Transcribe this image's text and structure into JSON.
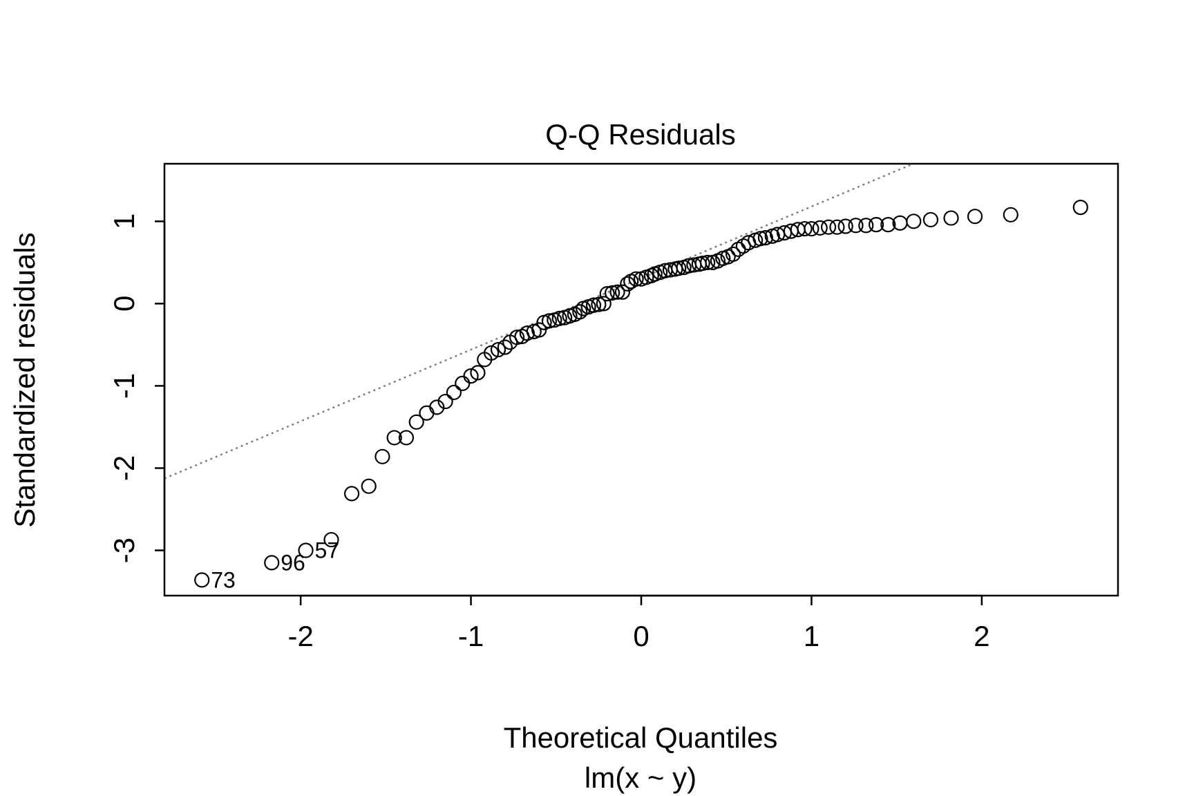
{
  "chart_data": {
    "type": "scatter",
    "title": "Q-Q Residuals",
    "xlabel": "Theoretical Quantiles",
    "subtitle": "lm(x ~ y)",
    "ylabel": "Standardized residuals",
    "xlim": [
      -2.8,
      2.8
    ],
    "ylim": [
      -3.55,
      1.7
    ],
    "x_ticks": [
      -2,
      -1,
      0,
      1,
      2
    ],
    "x_tick_labels": [
      "-2",
      "-1",
      "0",
      "1",
      "2"
    ],
    "y_ticks": [
      -3,
      -2,
      -1,
      0,
      1
    ],
    "y_tick_labels": [
      "-3",
      "-2",
      "-1",
      "0",
      "1"
    ],
    "grid": false,
    "reference_line": {
      "style": "dotted",
      "color": "#808080",
      "intercept": 0.31,
      "slope": 0.87
    },
    "series": [
      {
        "marker": "open-circle",
        "color": "#000000",
        "points": [
          [
            -2.58,
            -3.36
          ],
          [
            -2.17,
            -3.15
          ],
          [
            -1.97,
            -3.0
          ],
          [
            -1.82,
            -2.87
          ],
          [
            -1.7,
            -2.31
          ],
          [
            -1.6,
            -2.22
          ],
          [
            -1.52,
            -1.86
          ],
          [
            -1.45,
            -1.63
          ],
          [
            -1.38,
            -1.63
          ],
          [
            -1.32,
            -1.44
          ],
          [
            -1.26,
            -1.33
          ],
          [
            -1.2,
            -1.26
          ],
          [
            -1.15,
            -1.19
          ],
          [
            -1.1,
            -1.08
          ],
          [
            -1.05,
            -0.97
          ],
          [
            -1.0,
            -0.88
          ],
          [
            -0.96,
            -0.84
          ],
          [
            -0.92,
            -0.68
          ],
          [
            -0.88,
            -0.6
          ],
          [
            -0.84,
            -0.56
          ],
          [
            -0.8,
            -0.53
          ],
          [
            -0.77,
            -0.47
          ],
          [
            -0.73,
            -0.41
          ],
          [
            -0.7,
            -0.4
          ],
          [
            -0.67,
            -0.36
          ],
          [
            -0.63,
            -0.34
          ],
          [
            -0.6,
            -0.32
          ],
          [
            -0.57,
            -0.23
          ],
          [
            -0.54,
            -0.21
          ],
          [
            -0.51,
            -0.2
          ],
          [
            -0.48,
            -0.18
          ],
          [
            -0.45,
            -0.17
          ],
          [
            -0.42,
            -0.15
          ],
          [
            -0.39,
            -0.13
          ],
          [
            -0.36,
            -0.1
          ],
          [
            -0.34,
            -0.06
          ],
          [
            -0.31,
            -0.04
          ],
          [
            -0.28,
            -0.02
          ],
          [
            -0.25,
            -0.01
          ],
          [
            -0.22,
            0.0
          ],
          [
            -0.2,
            0.12
          ],
          [
            -0.17,
            0.13
          ],
          [
            -0.14,
            0.14
          ],
          [
            -0.11,
            0.14
          ],
          [
            -0.08,
            0.24
          ],
          [
            -0.06,
            0.27
          ],
          [
            -0.03,
            0.3
          ],
          [
            0.0,
            0.3
          ],
          [
            0.03,
            0.32
          ],
          [
            0.06,
            0.34
          ],
          [
            0.08,
            0.36
          ],
          [
            0.11,
            0.38
          ],
          [
            0.14,
            0.4
          ],
          [
            0.17,
            0.41
          ],
          [
            0.2,
            0.42
          ],
          [
            0.22,
            0.43
          ],
          [
            0.25,
            0.44
          ],
          [
            0.28,
            0.46
          ],
          [
            0.31,
            0.47
          ],
          [
            0.34,
            0.48
          ],
          [
            0.36,
            0.49
          ],
          [
            0.39,
            0.5
          ],
          [
            0.42,
            0.5
          ],
          [
            0.45,
            0.52
          ],
          [
            0.48,
            0.55
          ],
          [
            0.51,
            0.57
          ],
          [
            0.54,
            0.6
          ],
          [
            0.57,
            0.66
          ],
          [
            0.6,
            0.7
          ],
          [
            0.63,
            0.74
          ],
          [
            0.67,
            0.77
          ],
          [
            0.7,
            0.79
          ],
          [
            0.73,
            0.8
          ],
          [
            0.77,
            0.82
          ],
          [
            0.8,
            0.84
          ],
          [
            0.84,
            0.86
          ],
          [
            0.88,
            0.88
          ],
          [
            0.92,
            0.9
          ],
          [
            0.96,
            0.91
          ],
          [
            1.0,
            0.91
          ],
          [
            1.05,
            0.92
          ],
          [
            1.1,
            0.93
          ],
          [
            1.15,
            0.93
          ],
          [
            1.2,
            0.94
          ],
          [
            1.26,
            0.95
          ],
          [
            1.32,
            0.95
          ],
          [
            1.38,
            0.96
          ],
          [
            1.45,
            0.96
          ],
          [
            1.52,
            0.98
          ],
          [
            1.6,
            1.0
          ],
          [
            1.7,
            1.02
          ],
          [
            1.82,
            1.04
          ],
          [
            1.96,
            1.06
          ],
          [
            2.17,
            1.08
          ],
          [
            2.58,
            1.17
          ]
        ]
      }
    ],
    "point_labels": [
      {
        "x": -2.58,
        "y": -3.36,
        "text": "73"
      },
      {
        "x": -2.17,
        "y": -3.15,
        "text": "96"
      },
      {
        "x": -1.97,
        "y": -3.0,
        "text": "57"
      }
    ]
  }
}
